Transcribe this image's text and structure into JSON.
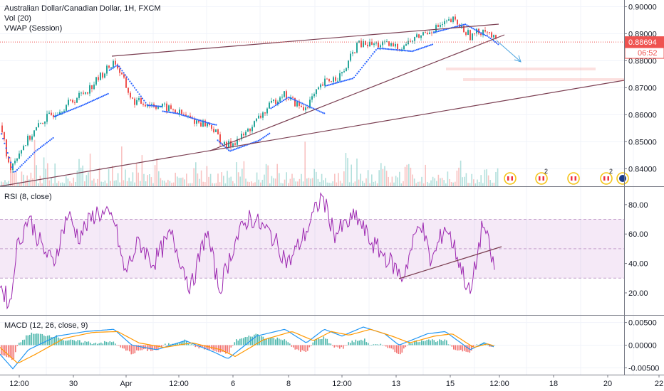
{
  "chart_data": [
    {
      "type": "candlestick",
      "title": "Australian Dollar/Canadian Dollar, 1H, FXCM",
      "indicators": [
        "Vol (20)",
        "VWAP (Session)"
      ],
      "price_axis": {
        "ticks": [
          "0.90000",
          "0.89000",
          "0.88000",
          "0.87000",
          "0.86000",
          "0.85000",
          "0.84000"
        ],
        "ylim": [
          0.8335,
          0.9025
        ]
      },
      "last_price": {
        "value": "0.88694",
        "countdown": "06:52",
        "color": "#ef5350"
      },
      "x_tick_labels": [
        "12:00",
        "30",
        "Apr",
        "12:00",
        "6",
        "8",
        "12:00",
        "13",
        "15",
        "12:00",
        "18",
        "20",
        "22"
      ],
      "approx_close_path": [
        [
          0,
          0.856
        ],
        [
          12,
          0.84
        ],
        [
          30,
          0.848
        ],
        [
          60,
          0.858
        ],
        [
          100,
          0.865
        ],
        [
          125,
          0.87
        ],
        [
          160,
          0.88
        ],
        [
          185,
          0.865
        ],
        [
          210,
          0.864
        ],
        [
          240,
          0.862
        ],
        [
          270,
          0.858
        ],
        [
          295,
          0.856
        ],
        [
          315,
          0.848
        ],
        [
          340,
          0.852
        ],
        [
          370,
          0.861
        ],
        [
          395,
          0.868
        ],
        [
          425,
          0.862
        ],
        [
          455,
          0.872
        ],
        [
          480,
          0.875
        ],
        [
          500,
          0.886
        ],
        [
          535,
          0.886
        ],
        [
          560,
          0.885
        ],
        [
          600,
          0.891
        ],
        [
          635,
          0.895
        ],
        [
          660,
          0.889
        ],
        [
          680,
          0.892
        ],
        [
          695,
          0.887
        ]
      ],
      "trend_lines": "rising wedge (two converging lines), lower long support line, projected arrow down-right",
      "event_icons": [
        "CAD",
        "CAD",
        "CAD",
        "CAD",
        "AUD"
      ],
      "event_badges": [
        "",
        "2",
        "",
        "2",
        ""
      ]
    },
    {
      "type": "line",
      "title": "RSI (8, close)",
      "ticks": [
        "80.00",
        "60.00",
        "40.00",
        "20.00"
      ],
      "ylim": [
        5,
        92
      ],
      "band": [
        30,
        70
      ],
      "band_color": "#9c27b0",
      "line_color": "#9c27b0",
      "approx_values": [
        [
          0,
          25
        ],
        [
          15,
          12
        ],
        [
          22,
          48
        ],
        [
          40,
          72
        ],
        [
          60,
          50
        ],
        [
          75,
          40
        ],
        [
          95,
          74
        ],
        [
          110,
          58
        ],
        [
          135,
          75
        ],
        [
          160,
          70
        ],
        [
          175,
          33
        ],
        [
          195,
          55
        ],
        [
          215,
          40
        ],
        [
          240,
          60
        ],
        [
          268,
          23
        ],
        [
          290,
          62
        ],
        [
          308,
          22
        ],
        [
          330,
          55
        ],
        [
          350,
          72
        ],
        [
          380,
          60
        ],
        [
          405,
          40
        ],
        [
          430,
          62
        ],
        [
          452,
          86
        ],
        [
          470,
          60
        ],
        [
          500,
          72
        ],
        [
          520,
          55
        ],
        [
          550,
          40
        ],
        [
          565,
          30
        ],
        [
          590,
          70
        ],
        [
          605,
          40
        ],
        [
          625,
          66
        ],
        [
          640,
          48
        ],
        [
          660,
          18
        ],
        [
          678,
          68
        ],
        [
          695,
          34
        ]
      ]
    },
    {
      "type": "line",
      "title": "MACD (12, 26, close, 9)",
      "ticks": [
        "0.00500",
        "0.00000",
        "-0.00500"
      ],
      "ylim": [
        -0.0065,
        0.0065
      ],
      "series": [
        {
          "color": "#2196f3",
          "approx_values": [
            [
              0,
              -0.002
            ],
            [
              18,
              -0.0052
            ],
            [
              40,
              -0.001
            ],
            [
              80,
              0.002
            ],
            [
              120,
              0.003
            ],
            [
              160,
              0.0035
            ],
            [
              185,
              0.0
            ],
            [
              220,
              -0.001
            ],
            [
              260,
              0.001
            ],
            [
              300,
              -0.0015
            ],
            [
              320,
              -0.003
            ],
            [
              360,
              0.002
            ],
            [
              400,
              0.0035
            ],
            [
              430,
              0.0005
            ],
            [
              455,
              0.0035
            ],
            [
              480,
              0.002
            ],
            [
              510,
              0.004
            ],
            [
              540,
              0.0025
            ],
            [
              560,
              0.0
            ],
            [
              600,
              0.0025
            ],
            [
              625,
              0.003
            ],
            [
              660,
              -0.001
            ],
            [
              680,
              0.0005
            ],
            [
              695,
              -0.0005
            ]
          ]
        },
        {
          "color": "#ff9800",
          "approx_values": [
            [
              0,
              -0.0005
            ],
            [
              25,
              -0.004
            ],
            [
              50,
              -0.002
            ],
            [
              90,
              0.0015
            ],
            [
              130,
              0.0028
            ],
            [
              165,
              0.003
            ],
            [
              195,
              0.0005
            ],
            [
              230,
              -0.0005
            ],
            [
              270,
              0.0005
            ],
            [
              310,
              -0.001
            ],
            [
              330,
              -0.0025
            ],
            [
              370,
              0.0012
            ],
            [
              410,
              0.003
            ],
            [
              440,
              0.001
            ],
            [
              465,
              0.003
            ],
            [
              490,
              0.0022
            ],
            [
              520,
              0.0035
            ],
            [
              550,
              0.002
            ],
            [
              575,
              0.0005
            ],
            [
              610,
              0.002
            ],
            [
              635,
              0.0025
            ],
            [
              665,
              -0.0005
            ],
            [
              685,
              0.0003
            ],
            [
              695,
              -0.0003
            ]
          ]
        }
      ],
      "histogram_colors": {
        "positive": "#26a69a",
        "negative": "#ef5350"
      }
    }
  ]
}
